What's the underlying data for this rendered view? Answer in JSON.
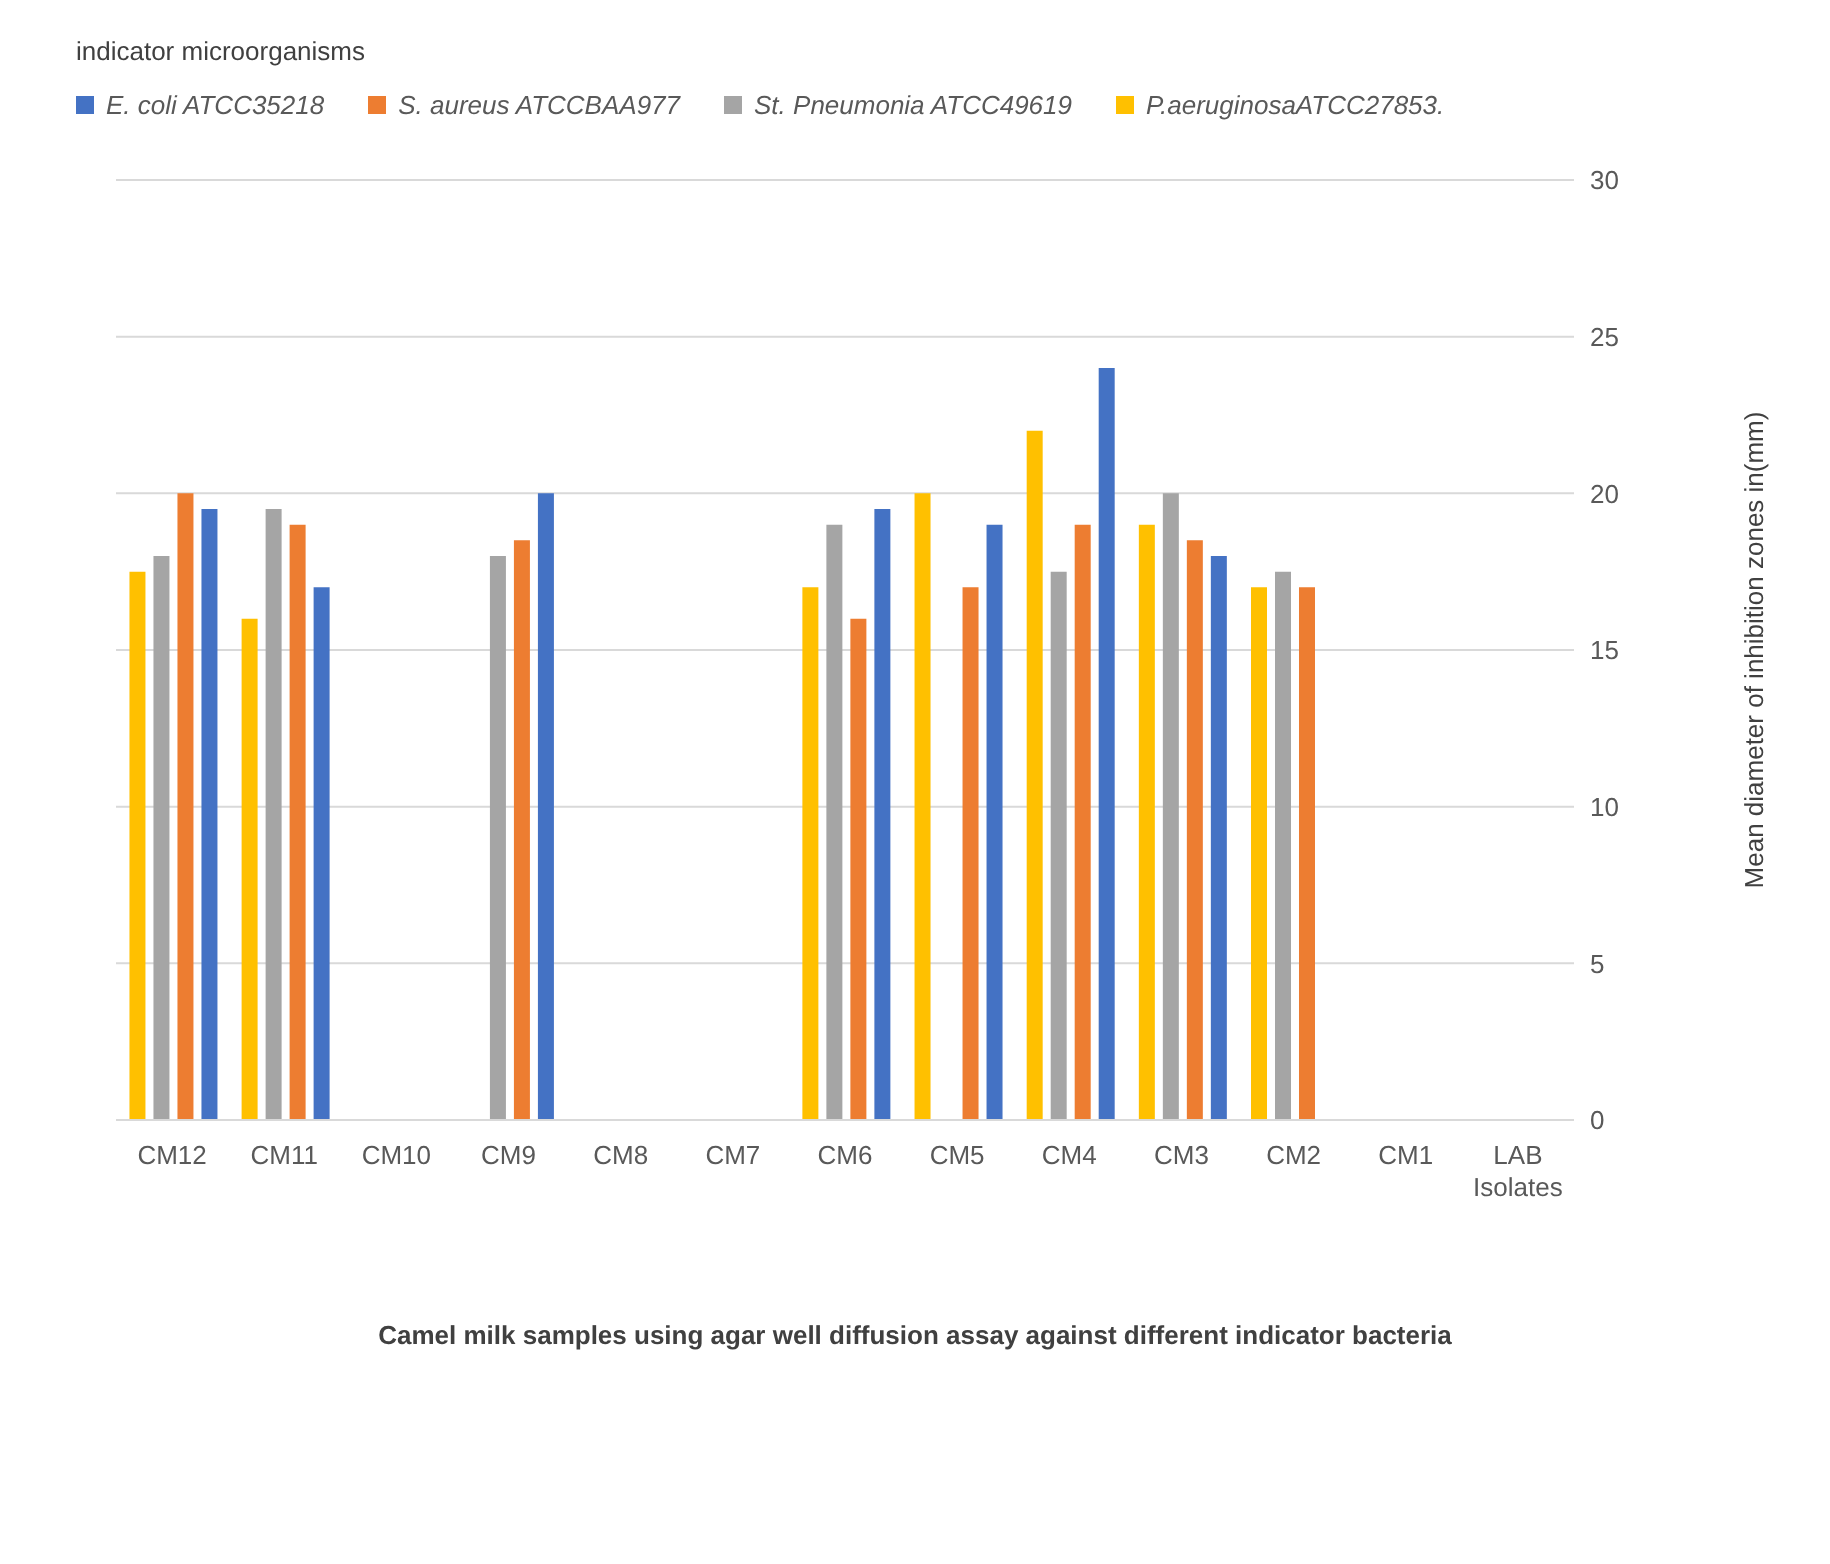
{
  "chart_data": {
    "type": "bar",
    "legend_title": "indicator microorganisms",
    "xlabel": "Camel milk samples using agar well diffusion assay against different indicator bacteria",
    "ylabel": "Mean diameter of inhibition zones in(mm)",
    "categories": [
      "CM12",
      "CM11",
      "CM10",
      "CM9",
      "CM8",
      "CM7",
      "CM6",
      "CM5",
      "CM4",
      "CM3",
      "CM2",
      "CM1",
      "LAB Isolates"
    ],
    "series": [
      {
        "name": "E. coli ATCC35218",
        "color": "#4472c4",
        "values": [
          19.5,
          17,
          null,
          20,
          null,
          null,
          19.5,
          19,
          24,
          18,
          null,
          null,
          null
        ]
      },
      {
        "name": "S. aureus ATCCBAA977",
        "color": "#ed7d31",
        "values": [
          20,
          19,
          null,
          18.5,
          null,
          null,
          16,
          17,
          19,
          18.5,
          17,
          null,
          null
        ]
      },
      {
        "name": "St. Pneumonia ATCC49619",
        "color": "#a5a5a5",
        "values": [
          18,
          19.5,
          null,
          18,
          null,
          null,
          19,
          null,
          17.5,
          20,
          17.5,
          null,
          null
        ]
      },
      {
        "name": "P.aeruginosaATCC27853.",
        "color": "#ffc000",
        "values": [
          17.5,
          16,
          null,
          null,
          null,
          null,
          17,
          20,
          22,
          19,
          17,
          null,
          null
        ]
      }
    ],
    "ylim": [
      0,
      30
    ],
    "yticks": [
      0,
      5,
      10,
      15,
      20,
      25,
      30
    ],
    "grid": "y",
    "legend": "top left"
  }
}
